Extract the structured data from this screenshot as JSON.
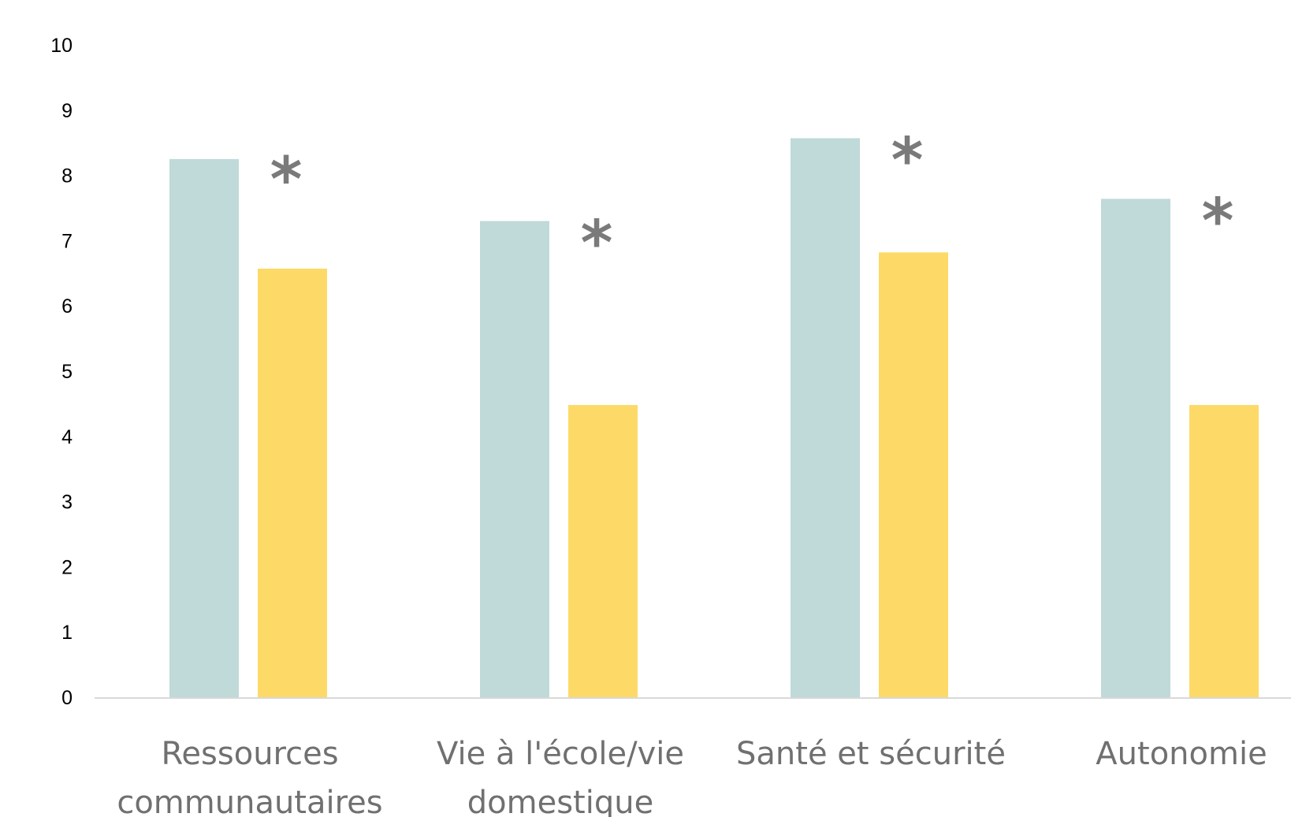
{
  "chart_data": {
    "type": "bar",
    "title": "",
    "xlabel": "",
    "ylabel": "",
    "ylim": [
      0,
      10
    ],
    "yticks": [
      "0",
      "1",
      "2",
      "3",
      "4",
      "5",
      "6",
      "7",
      "8",
      "9",
      "10"
    ],
    "grid": false,
    "legend": "none",
    "categories": [
      [
        "Ressources",
        "communautaires"
      ],
      [
        "Vie à l'école/vie",
        "domestique"
      ],
      [
        "Santé et sécurité"
      ],
      [
        "Autonomie"
      ]
    ],
    "series": [
      {
        "color": "#c0d9d9",
        "values": [
          8.25,
          7.3,
          8.57,
          7.64
        ]
      },
      {
        "color": "#fdda67",
        "values": [
          6.57,
          4.48,
          6.82,
          4.48
        ]
      }
    ],
    "annotations": [
      {
        "category": 0,
        "text": "*"
      },
      {
        "category": 1,
        "text": "*"
      },
      {
        "category": 2,
        "text": "*"
      },
      {
        "category": 3,
        "text": "*"
      }
    ],
    "axis_color": "#d9d9d9"
  }
}
